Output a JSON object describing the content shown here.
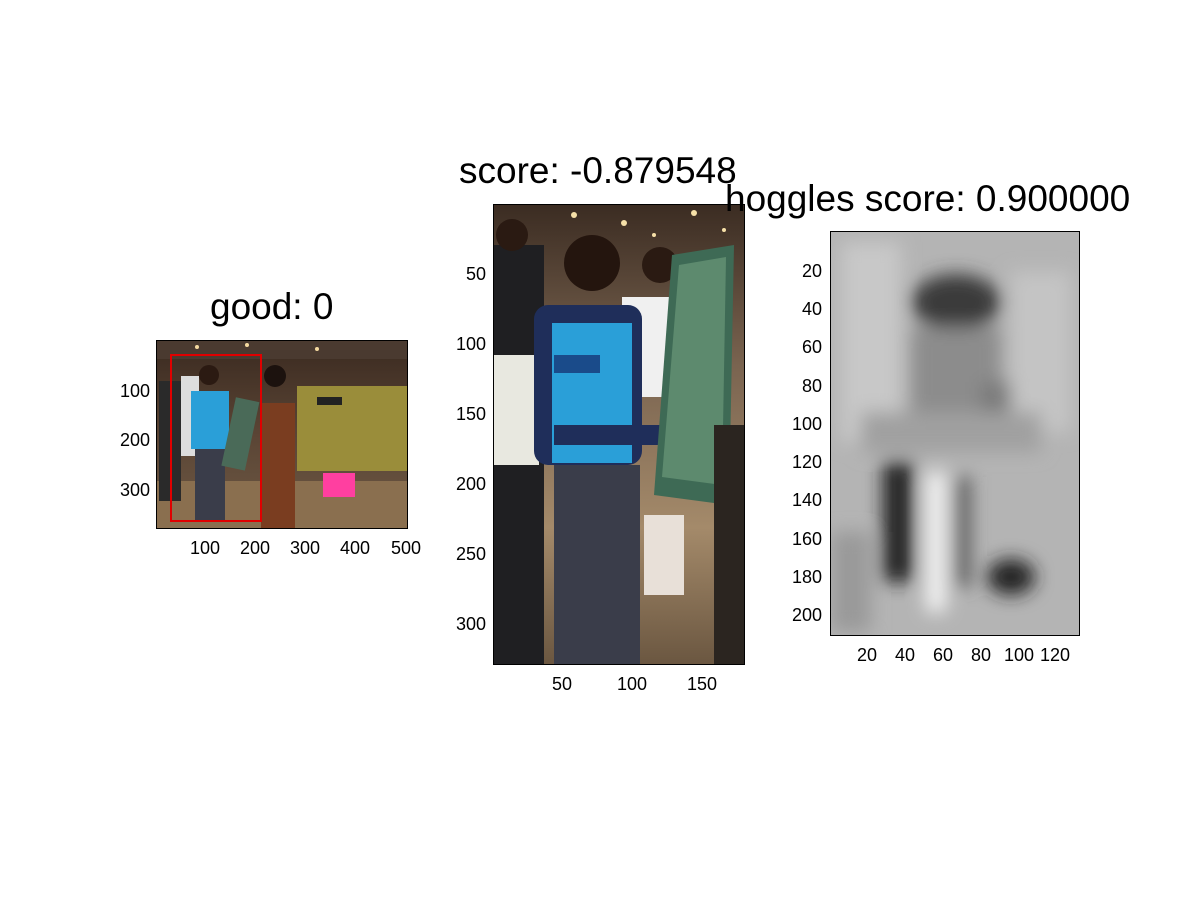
{
  "panels": {
    "left": {
      "title": "good: 0",
      "yticks": [
        "100",
        "200",
        "300"
      ],
      "xticks": [
        "100",
        "200",
        "300",
        "400",
        "500"
      ],
      "image": "full scene photo with red bounding box"
    },
    "middle": {
      "title": "score: -0.879548",
      "yticks": [
        "50",
        "100",
        "150",
        "200",
        "250",
        "300"
      ],
      "xticks": [
        "50",
        "100",
        "150"
      ],
      "image": "cropped photo of person in blue shirt"
    },
    "right": {
      "title": "hoggles score: 0.900000",
      "yticks": [
        "20",
        "40",
        "60",
        "80",
        "100",
        "120",
        "140",
        "160",
        "180",
        "200"
      ],
      "xticks": [
        "20",
        "40",
        "60",
        "80",
        "100",
        "120"
      ],
      "image": "grayscale HOG reconstruction"
    }
  },
  "colors": {
    "bbox": "#e00000",
    "shirt": "#2a9fd8"
  }
}
